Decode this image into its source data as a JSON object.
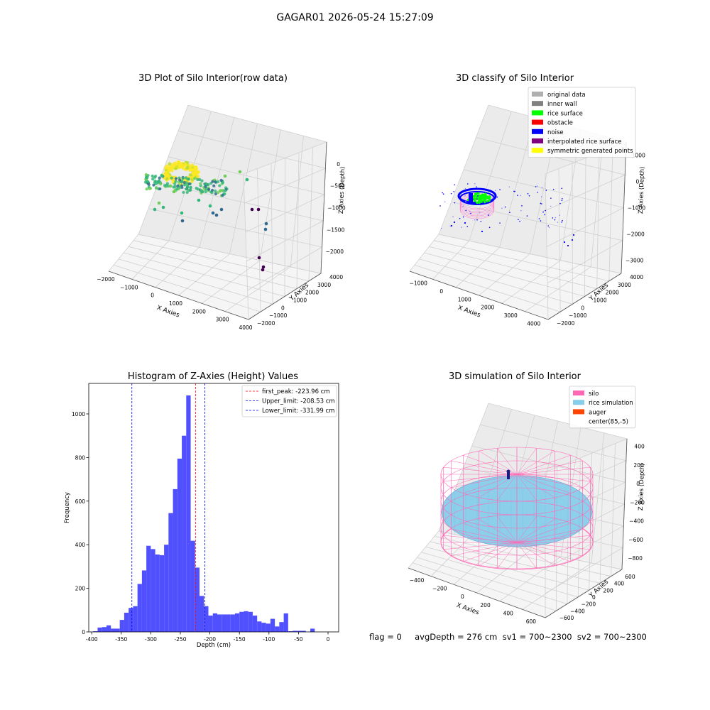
{
  "suptitle": "GAGAR01 2026-05-24 15:27:09",
  "footer": "flag = 0     avgDepth = 276 cm  sv1 = 700~2300  sv2 = 700~2300",
  "colors": {
    "hist_bar": "#5050ff",
    "first_peak": "#ff0000",
    "limits": "#0000ff",
    "silo": "#ff69b4",
    "rice": "#87ceeb",
    "auger": "#ff4500",
    "noise": "#0000ff",
    "rice_surface": "#00ff00",
    "viridis": [
      "#440154",
      "#31688e",
      "#35b779",
      "#6ece58",
      "#b5de2b",
      "#fde725"
    ]
  },
  "chart_data": [
    {
      "type": "scatter",
      "title": "3D Plot of Silo Interior(row data)",
      "xlabel": "X Axies",
      "ylabel": "Y Axies",
      "zlabel": "Z Axies (Depth)",
      "xticks": [
        "−2000",
        "−1000",
        "0",
        "1000",
        "2000",
        "3000",
        "4000"
      ],
      "yticks": [
        "−2000",
        "−1000",
        "0",
        "1000",
        "2000",
        "3000",
        "4000"
      ],
      "zticks": [
        "0",
        "−500",
        "−1000",
        "−1500",
        "−2000"
      ],
      "xlim": [
        -2000,
        4000
      ],
      "ylim": [
        -2000,
        4000
      ],
      "zlim": [
        -2200,
        0
      ]
    },
    {
      "type": "scatter",
      "title": "3D classify of Silo Interior",
      "xlabel": "X Axies",
      "ylabel": "Y Axies",
      "zlabel": "Z Axies (Depth)",
      "xticks": [
        "−1000",
        "0",
        "1000",
        "2000",
        "3000",
        "4000"
      ],
      "yticks": [
        "−2000",
        "−1000",
        "0",
        "1000",
        "2000",
        "3000",
        "4000"
      ],
      "zticks": [
        "1000",
        "0",
        "−1000",
        "−2000",
        "−3000"
      ],
      "legend": [
        {
          "label": "original data",
          "color": "#b0b0b0"
        },
        {
          "label": "inner wall",
          "color": "#808080"
        },
        {
          "label": "rice surface",
          "color": "#00ff00"
        },
        {
          "label": "obstacle",
          "color": "#ff0000"
        },
        {
          "label": "noise",
          "color": "#0000ff"
        },
        {
          "label": "interpolated rice surface",
          "color": "#800080"
        },
        {
          "label": "symmetric generated points",
          "color": "#ffff00"
        }
      ]
    },
    {
      "type": "bar",
      "title": "Histogram of Z-Axies (Height) Values",
      "xlabel": "Depth (cm)",
      "ylabel": "Frequency",
      "xlim": [
        -405,
        18
      ],
      "ylim": [
        0,
        1140
      ],
      "xticks": [
        -400,
        -350,
        -300,
        -250,
        -200,
        -150,
        -100,
        -50,
        0
      ],
      "yticks": [
        0,
        200,
        400,
        600,
        800,
        1000
      ],
      "bin_start": -397.5,
      "bin_width": 7.5,
      "values": [
        3,
        20,
        22,
        30,
        15,
        15,
        55,
        88,
        110,
        118,
        220,
        282,
        395,
        380,
        355,
        352,
        400,
        545,
        655,
        795,
        900,
        1085,
        418,
        295,
        165,
        118,
        75,
        85,
        80,
        80,
        80,
        80,
        85,
        92,
        95,
        92,
        75,
        48,
        42,
        38,
        60,
        25,
        45,
        85,
        3,
        5,
        5,
        5,
        0,
        15
      ],
      "lines": [
        {
          "label": "first_peak: -223.96 cm",
          "x": -223.96,
          "color": "#ff0000"
        },
        {
          "label": "Upper_limit: -208.53 cm",
          "x": -208.53,
          "color": "#0000ff"
        },
        {
          "label": "Lower_limit: -331.99 cm",
          "x": -331.99,
          "color": "#0000ff"
        }
      ]
    },
    {
      "type": "scatter",
      "title": "3D simulation of Silo Interior",
      "xlabel": "X Axies",
      "ylabel": "Y Axies",
      "zlabel": "Z Axies (Depth)",
      "xticks": [
        "−400",
        "−200",
        "0",
        "200",
        "400",
        "600"
      ],
      "yticks": [
        "−600",
        "−400",
        "−200",
        "0",
        "200",
        "400",
        "600"
      ],
      "zticks": [
        "400",
        "200",
        "0",
        "−200",
        "−400",
        "−600",
        "−800"
      ],
      "legend": [
        {
          "label": "silo",
          "color": "#ff69b4"
        },
        {
          "label": "rice simulation",
          "color": "#87ceeb"
        },
        {
          "label": "auger",
          "color": "#ff4500"
        },
        {
          "label": "center(85,-5)",
          "color": "none"
        }
      ]
    }
  ]
}
